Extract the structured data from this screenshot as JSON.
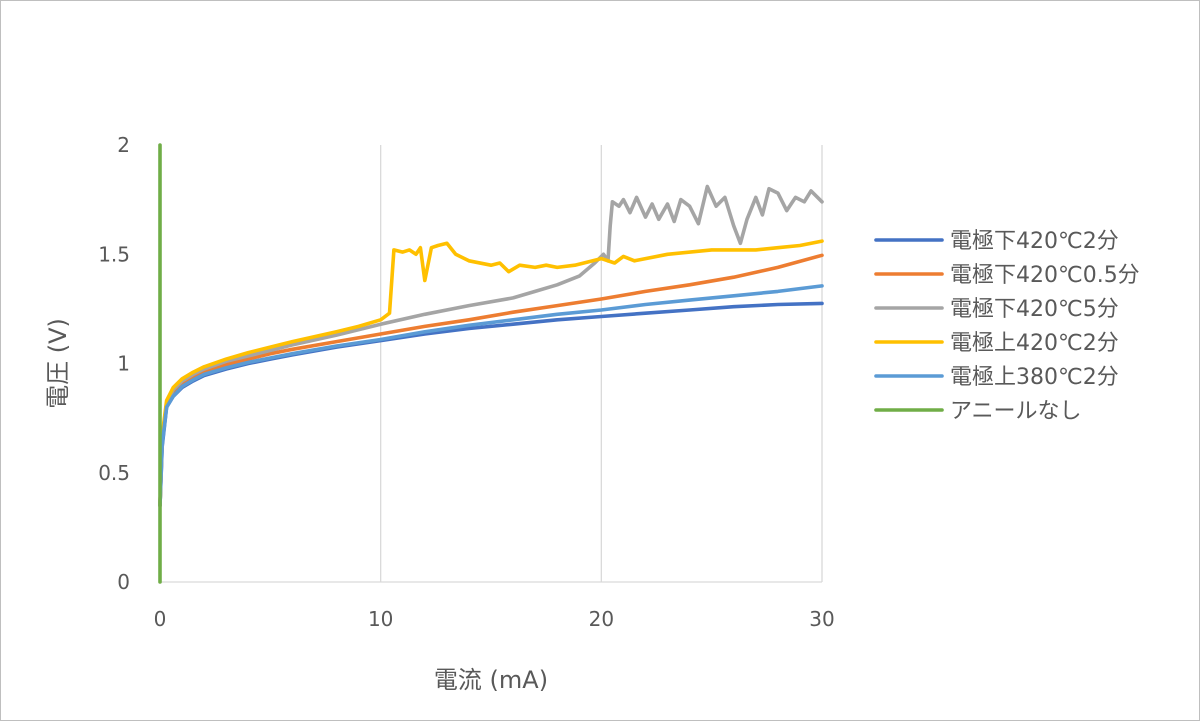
{
  "chart_data": {
    "type": "line",
    "xlabel": "電流 (mA)",
    "ylabel": "電圧 (V)",
    "xlim": [
      0,
      30
    ],
    "ylim": [
      0,
      2
    ],
    "xticks": [
      "0",
      "10",
      "20",
      "30"
    ],
    "yticks": [
      "0",
      "0.5",
      "1",
      "1.5",
      "2"
    ],
    "grid": "vertical",
    "legend_position": "right",
    "series": [
      {
        "name": "電極下420℃2分",
        "color": "#4472c4",
        "points": [
          [
            0,
            0.35
          ],
          [
            0.1,
            0.62
          ],
          [
            0.3,
            0.8
          ],
          [
            0.6,
            0.85
          ],
          [
            1,
            0.89
          ],
          [
            1.5,
            0.92
          ],
          [
            2,
            0.945
          ],
          [
            3,
            0.975
          ],
          [
            4,
            1.0
          ],
          [
            5,
            1.02
          ],
          [
            6,
            1.04
          ],
          [
            8,
            1.075
          ],
          [
            10,
            1.105
          ],
          [
            12,
            1.135
          ],
          [
            14,
            1.16
          ],
          [
            16,
            1.18
          ],
          [
            18,
            1.2
          ],
          [
            20,
            1.215
          ],
          [
            22,
            1.23
          ],
          [
            24,
            1.245
          ],
          [
            26,
            1.26
          ],
          [
            28,
            1.27
          ],
          [
            30,
            1.275
          ]
        ]
      },
      {
        "name": "電極下420℃0.5分",
        "color": "#ed7d31",
        "points": [
          [
            0,
            0.35
          ],
          [
            0.1,
            0.65
          ],
          [
            0.3,
            0.82
          ],
          [
            0.6,
            0.87
          ],
          [
            1,
            0.91
          ],
          [
            1.5,
            0.94
          ],
          [
            2,
            0.965
          ],
          [
            3,
            0.995
          ],
          [
            4,
            1.02
          ],
          [
            5,
            1.045
          ],
          [
            6,
            1.065
          ],
          [
            8,
            1.1
          ],
          [
            10,
            1.135
          ],
          [
            12,
            1.17
          ],
          [
            14,
            1.2
          ],
          [
            16,
            1.235
          ],
          [
            18,
            1.265
          ],
          [
            20,
            1.295
          ],
          [
            22,
            1.33
          ],
          [
            24,
            1.36
          ],
          [
            26,
            1.395
          ],
          [
            28,
            1.44
          ],
          [
            30,
            1.495
          ]
        ]
      },
      {
        "name": "電極下420℃5分",
        "color": "#a5a5a5",
        "points": [
          [
            0,
            0.35
          ],
          [
            0.1,
            0.66
          ],
          [
            0.3,
            0.82
          ],
          [
            0.6,
            0.88
          ],
          [
            1,
            0.92
          ],
          [
            1.5,
            0.95
          ],
          [
            2,
            0.975
          ],
          [
            3,
            1.01
          ],
          [
            4,
            1.035
          ],
          [
            5,
            1.06
          ],
          [
            6,
            1.085
          ],
          [
            8,
            1.13
          ],
          [
            10,
            1.18
          ],
          [
            12,
            1.225
          ],
          [
            14,
            1.265
          ],
          [
            16,
            1.3
          ],
          [
            17,
            1.33
          ],
          [
            18,
            1.36
          ],
          [
            19,
            1.4
          ],
          [
            19.7,
            1.46
          ],
          [
            20.1,
            1.5
          ],
          [
            20.3,
            1.47
          ],
          [
            20.4,
            1.63
          ],
          [
            20.5,
            1.74
          ],
          [
            20.8,
            1.72
          ],
          [
            21,
            1.75
          ],
          [
            21.3,
            1.69
          ],
          [
            21.6,
            1.76
          ],
          [
            22,
            1.67
          ],
          [
            22.3,
            1.73
          ],
          [
            22.6,
            1.66
          ],
          [
            23,
            1.73
          ],
          [
            23.3,
            1.65
          ],
          [
            23.6,
            1.75
          ],
          [
            24,
            1.72
          ],
          [
            24.4,
            1.64
          ],
          [
            24.8,
            1.81
          ],
          [
            25.2,
            1.72
          ],
          [
            25.6,
            1.76
          ],
          [
            26,
            1.63
          ],
          [
            26.3,
            1.55
          ],
          [
            26.6,
            1.66
          ],
          [
            27,
            1.76
          ],
          [
            27.3,
            1.68
          ],
          [
            27.6,
            1.8
          ],
          [
            28,
            1.78
          ],
          [
            28.4,
            1.7
          ],
          [
            28.8,
            1.76
          ],
          [
            29.2,
            1.74
          ],
          [
            29.5,
            1.79
          ],
          [
            30,
            1.74
          ]
        ]
      },
      {
        "name": "電極上420℃2分",
        "color": "#ffc000",
        "points": [
          [
            0,
            0.35
          ],
          [
            0.1,
            0.67
          ],
          [
            0.3,
            0.83
          ],
          [
            0.6,
            0.89
          ],
          [
            1,
            0.93
          ],
          [
            1.5,
            0.96
          ],
          [
            2,
            0.985
          ],
          [
            3,
            1.02
          ],
          [
            4,
            1.05
          ],
          [
            5,
            1.075
          ],
          [
            6,
            1.1
          ],
          [
            8,
            1.145
          ],
          [
            9,
            1.17
          ],
          [
            10,
            1.2
          ],
          [
            10.4,
            1.23
          ],
          [
            10.6,
            1.52
          ],
          [
            11,
            1.51
          ],
          [
            11.3,
            1.52
          ],
          [
            11.6,
            1.5
          ],
          [
            11.8,
            1.53
          ],
          [
            12,
            1.38
          ],
          [
            12.3,
            1.53
          ],
          [
            12.6,
            1.54
          ],
          [
            13,
            1.55
          ],
          [
            13.4,
            1.5
          ],
          [
            14,
            1.47
          ],
          [
            15,
            1.45
          ],
          [
            15.4,
            1.46
          ],
          [
            15.8,
            1.42
          ],
          [
            16.3,
            1.45
          ],
          [
            17,
            1.44
          ],
          [
            17.5,
            1.45
          ],
          [
            18,
            1.44
          ],
          [
            18.8,
            1.45
          ],
          [
            20,
            1.48
          ],
          [
            20.6,
            1.46
          ],
          [
            21,
            1.49
          ],
          [
            21.5,
            1.47
          ],
          [
            23,
            1.5
          ],
          [
            25,
            1.52
          ],
          [
            27,
            1.52
          ],
          [
            28,
            1.53
          ],
          [
            29,
            1.54
          ],
          [
            30,
            1.56
          ]
        ]
      },
      {
        "name": "電極上380℃2分",
        "color": "#5b9bd5",
        "points": [
          [
            0,
            0.35
          ],
          [
            0.1,
            0.63
          ],
          [
            0.3,
            0.8
          ],
          [
            0.6,
            0.85
          ],
          [
            1,
            0.895
          ],
          [
            1.5,
            0.925
          ],
          [
            2,
            0.95
          ],
          [
            3,
            0.98
          ],
          [
            4,
            1.005
          ],
          [
            5,
            1.025
          ],
          [
            6,
            1.045
          ],
          [
            8,
            1.08
          ],
          [
            10,
            1.11
          ],
          [
            12,
            1.145
          ],
          [
            14,
            1.175
          ],
          [
            16,
            1.2
          ],
          [
            18,
            1.225
          ],
          [
            20,
            1.245
          ],
          [
            22,
            1.27
          ],
          [
            24,
            1.29
          ],
          [
            26,
            1.31
          ],
          [
            28,
            1.33
          ],
          [
            30,
            1.355
          ]
        ]
      },
      {
        "name": "アニールなし",
        "color": "#70ad47",
        "points": [
          [
            0,
            0
          ],
          [
            0,
            0.5
          ],
          [
            0,
            1
          ],
          [
            0,
            1.5
          ],
          [
            0,
            2
          ]
        ]
      }
    ]
  }
}
